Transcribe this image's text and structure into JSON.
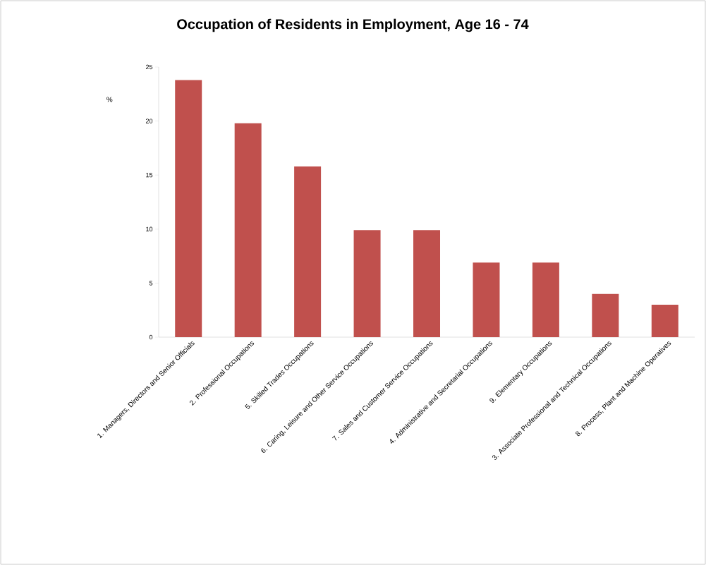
{
  "chart_data": {
    "type": "bar",
    "title": "Occupation of Residents in Employment, Age 16 - 74",
    "ylabel": "%",
    "categories": [
      "1. Managers, Directors and Senior Officials",
      "2. Professional Occupations",
      "5. Skilled Trades Occupations",
      "6. Caring, Leisure and Other Service Occupations",
      "7. Sales and Customer Service Occupations",
      "4. Administrative  and Secretarial Occupations",
      "9. Elementary Occupations",
      "3. Associate Professional and Technical Occupations",
      "8. Process, Plant and Machine Operatives"
    ],
    "values": [
      23.8,
      19.8,
      15.8,
      9.9,
      9.9,
      6.9,
      6.9,
      4.0,
      3.0
    ],
    "color": "#c0504d",
    "ylim": [
      0,
      25
    ],
    "yticks": [
      0,
      5,
      10,
      15,
      20,
      25
    ],
    "grid": false
  }
}
